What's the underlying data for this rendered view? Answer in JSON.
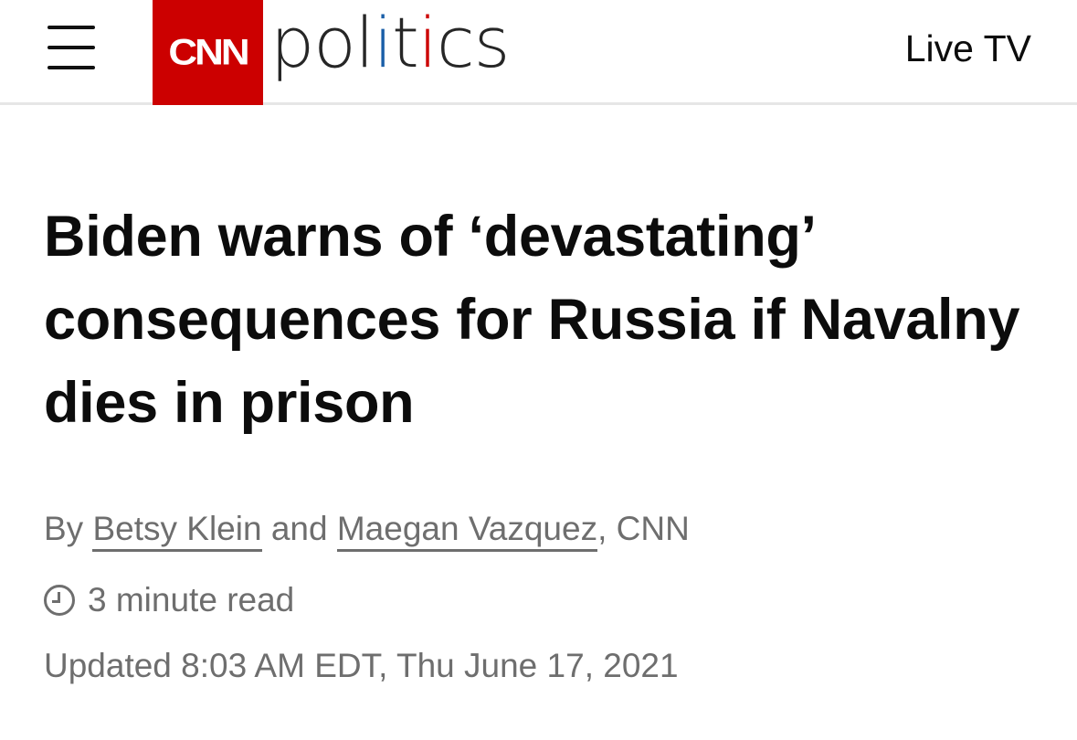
{
  "header": {
    "logo_text": "CNN",
    "section": {
      "part1": "pol",
      "i1": "i",
      "t": "t",
      "i2": "i",
      "part2": "cs"
    },
    "live_tv": "Live TV",
    "colors": {
      "brand_red": "#cc0000",
      "blue_i": "#1a5fa8",
      "red_i": "#cc0000"
    }
  },
  "article": {
    "headline": "Biden warns of ‘devastating’ consequences for Russia if Navalny dies in prison",
    "byline": {
      "prefix": "By ",
      "author1": "Betsy Klein",
      "conj": " and ",
      "author2": "Maegan Vazquez",
      "suffix": ", CNN"
    },
    "read_time": "3 minute read",
    "updated": "Updated 8:03 AM EDT, Thu June 17, 2021",
    "icons": {
      "read_time": "clock-icon",
      "menu": "hamburger-menu-icon"
    }
  }
}
